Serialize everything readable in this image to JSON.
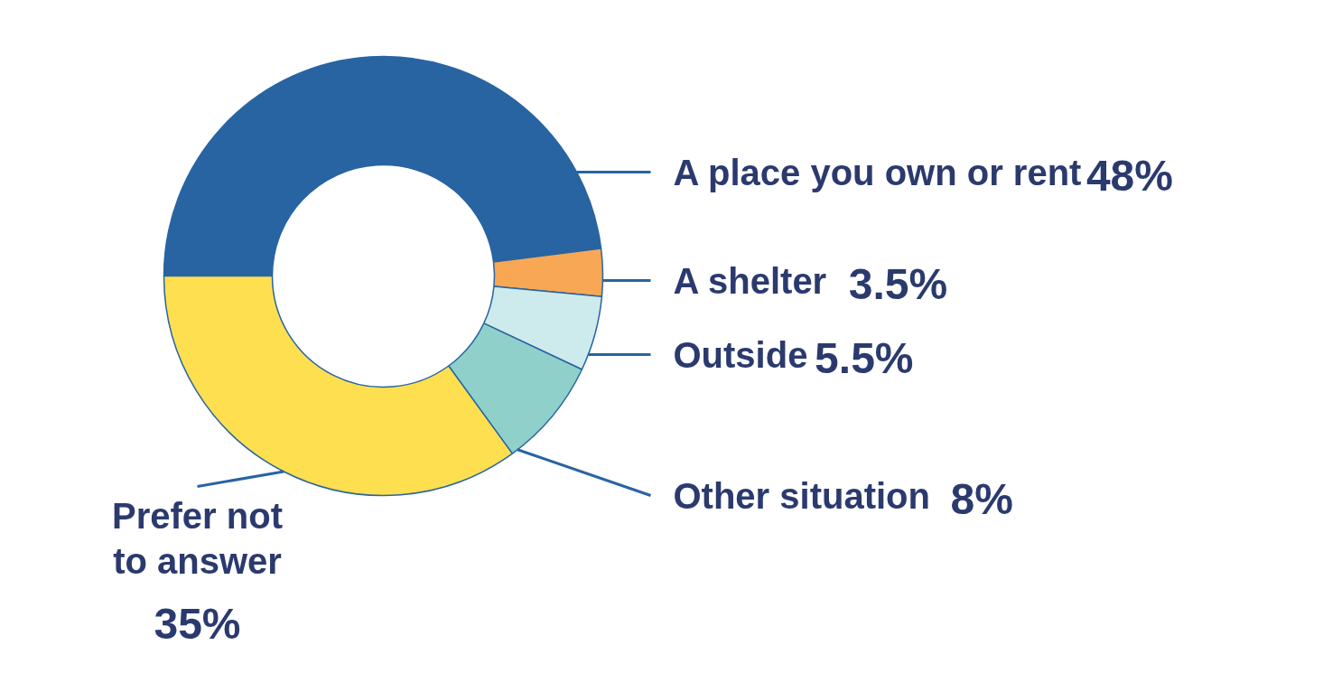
{
  "chart_data": {
    "type": "donut",
    "categories": [
      "A place you own or rent",
      "A shelter",
      "Outside",
      "Other situation",
      "Prefer not to answer"
    ],
    "values": [
      48,
      3.5,
      5.5,
      8,
      35
    ],
    "colors": [
      "#2864a2",
      "#f8a755",
      "#cdeaec",
      "#8fd0cb",
      "#fddf50"
    ],
    "value_labels": [
      "48%",
      "3.5%",
      "5.5%",
      "8%",
      "35%"
    ]
  }
}
